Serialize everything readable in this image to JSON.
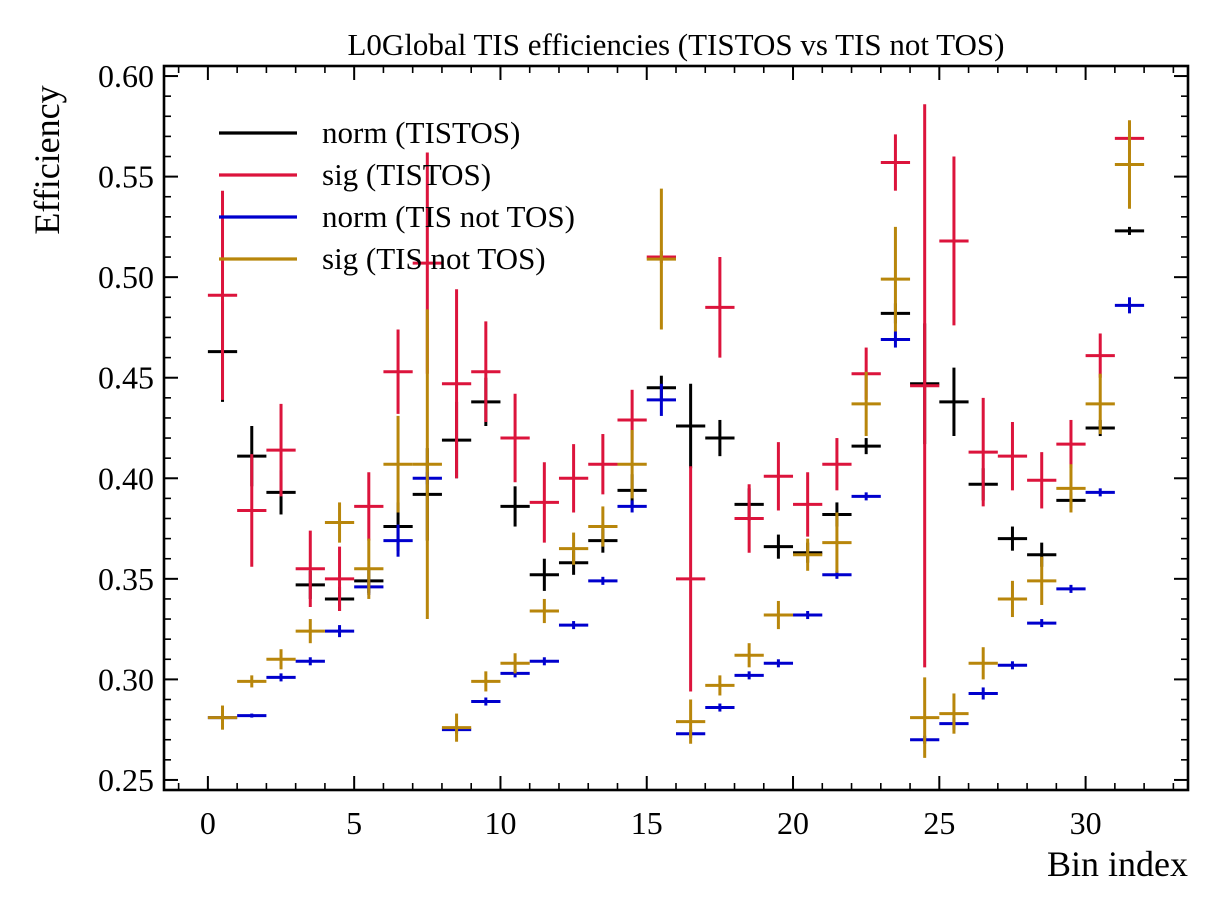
{
  "chart_data": {
    "type": "scatter",
    "style": "errorbar",
    "title": "L0Global TIS efficiencies (TISTOS vs TIS not TOS)",
    "xlabel": "Bin index",
    "ylabel": "Efficiency",
    "xlim": [
      -1.5,
      33.5
    ],
    "ylim": [
      0.245,
      0.605
    ],
    "xticks": [
      0,
      5,
      10,
      15,
      20,
      25,
      30
    ],
    "xtick_labels": [
      "0",
      "5",
      "10",
      "15",
      "20",
      "25",
      "30"
    ],
    "yticks": [
      0.25,
      0.3,
      0.35,
      0.4,
      0.45,
      0.5,
      0.55,
      0.6
    ],
    "ytick_labels": [
      "0.25",
      "0.30",
      "0.35",
      "0.40",
      "0.45",
      "0.50",
      "0.55",
      "0.60"
    ],
    "grid": false,
    "legend_position": "top-left",
    "x": [
      0.5,
      1.5,
      2.5,
      3.5,
      4.5,
      5.5,
      6.5,
      7.5,
      8.5,
      9.5,
      10.5,
      11.5,
      12.5,
      13.5,
      14.5,
      15.5,
      16.5,
      17.5,
      18.5,
      19.5,
      20.5,
      21.5,
      22.5,
      23.5,
      24.5,
      25.5,
      26.5,
      27.5,
      28.5,
      29.5,
      30.5,
      31.5
    ],
    "x_halfwidth": 0.5,
    "series": [
      {
        "name": "norm (TISTOS)",
        "color": "#000000",
        "y": [
          0.463,
          0.411,
          0.393,
          0.347,
          0.34,
          0.349,
          0.376,
          0.392,
          0.419,
          0.438,
          0.386,
          0.352,
          0.358,
          0.369,
          0.394,
          0.445,
          0.426,
          0.42,
          0.387,
          0.366,
          0.363,
          0.382,
          0.416,
          0.482,
          0.447,
          0.438,
          0.397,
          0.37,
          0.362,
          0.389,
          0.425,
          0.523
        ],
        "yerr": [
          0.025,
          0.015,
          0.011,
          0.007,
          0.006,
          0.006,
          0.012,
          0.023,
          0.019,
          0.012,
          0.01,
          0.008,
          0.006,
          0.006,
          0.008,
          0.006,
          0.021,
          0.009,
          0.008,
          0.006,
          0.005,
          0.006,
          0.004,
          0.005,
          0.03,
          0.017,
          0.008,
          0.006,
          0.006,
          0.004,
          0.004,
          0.002
        ]
      },
      {
        "name": "sig (TISTOS)",
        "color": "#dc143c",
        "y": [
          0.491,
          0.384,
          0.414,
          0.355,
          0.35,
          0.386,
          0.453,
          0.507,
          0.447,
          0.453,
          0.42,
          0.388,
          0.4,
          0.407,
          0.429,
          0.51,
          0.35,
          0.485,
          0.38,
          0.401,
          0.387,
          0.407,
          0.452,
          0.557,
          0.446,
          0.518,
          0.413,
          0.411,
          0.399,
          0.417,
          0.461,
          0.569
        ],
        "yerr": [
          0.052,
          0.028,
          0.023,
          0.019,
          0.016,
          0.017,
          0.021,
          0.055,
          0.047,
          0.025,
          0.022,
          0.02,
          0.017,
          0.015,
          0.015,
          0.003,
          0.056,
          0.025,
          0.017,
          0.017,
          0.016,
          0.013,
          0.013,
          0.014,
          0.14,
          0.042,
          0.027,
          0.017,
          0.014,
          0.012,
          0.011,
          0.008
        ]
      },
      {
        "name": "norm (TIS not TOS)",
        "color": "#0000cd",
        "y": [
          0.281,
          0.282,
          0.301,
          0.309,
          0.324,
          0.346,
          0.369,
          0.4,
          0.275,
          0.289,
          0.303,
          0.309,
          0.327,
          0.349,
          0.386,
          0.439,
          0.273,
          0.286,
          0.302,
          0.308,
          0.332,
          0.352,
          0.391,
          0.469,
          0.27,
          0.278,
          0.293,
          0.307,
          0.328,
          0.345,
          0.393,
          0.486
        ],
        "yerr": [
          0.001,
          0.001,
          0.002,
          0.002,
          0.003,
          0.004,
          0.008,
          0.003,
          0.002,
          0.002,
          0.002,
          0.002,
          0.002,
          0.002,
          0.003,
          0.008,
          0.002,
          0.002,
          0.002,
          0.002,
          0.002,
          0.002,
          0.002,
          0.004,
          0.002,
          0.003,
          0.003,
          0.002,
          0.002,
          0.002,
          0.002,
          0.004
        ]
      },
      {
        "name": "sig (TIS not TOS)",
        "color": "#b8860b",
        "y": [
          0.281,
          0.299,
          0.31,
          0.324,
          0.378,
          0.355,
          0.407,
          0.407,
          0.276,
          0.299,
          0.308,
          0.334,
          0.365,
          0.376,
          0.407,
          0.509,
          0.279,
          0.297,
          0.312,
          0.332,
          0.362,
          0.368,
          0.437,
          0.499,
          0.281,
          0.283,
          0.308,
          0.34,
          0.349,
          0.395,
          0.437,
          0.556
        ],
        "yerr": [
          0.006,
          0.003,
          0.005,
          0.006,
          0.01,
          0.015,
          0.024,
          0.077,
          0.007,
          0.005,
          0.005,
          0.006,
          0.008,
          0.01,
          0.017,
          0.035,
          0.011,
          0.005,
          0.006,
          0.007,
          0.008,
          0.015,
          0.016,
          0.026,
          0.02,
          0.01,
          0.008,
          0.009,
          0.012,
          0.012,
          0.015,
          0.022
        ]
      }
    ]
  }
}
